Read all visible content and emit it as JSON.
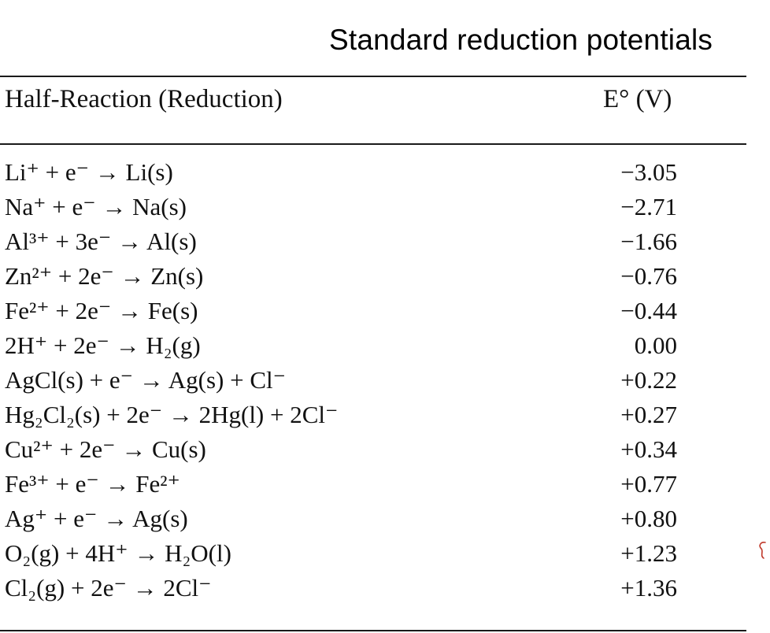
{
  "page": {
    "title": "Standard reduction potentials"
  },
  "table": {
    "headers": {
      "reaction": "Half-Reaction (Reduction)",
      "potential": "E° (V)"
    },
    "rows": [
      {
        "reaction": "Li⁺ + e⁻ → Li(s)",
        "potential": "−3.05"
      },
      {
        "reaction": "Na⁺ + e⁻ → Na(s)",
        "potential": "−2.71"
      },
      {
        "reaction": "Al³⁺ + 3e⁻ → Al(s)",
        "potential": "−1.66"
      },
      {
        "reaction": "Zn²⁺ + 2e⁻ → Zn(s)",
        "potential": "−0.76"
      },
      {
        "reaction": "Fe²⁺ + 2e⁻ → Fe(s)",
        "potential": "−0.44"
      },
      {
        "reaction": "2H⁺ + 2e⁻ → H₂(g)",
        "potential": "0.00"
      },
      {
        "reaction": "AgCl(s) + e⁻ → Ag(s) + Cl⁻",
        "potential": "+0.22"
      },
      {
        "reaction": "Hg₂Cl₂(s) + 2e⁻ → 2Hg(l) + 2Cl⁻",
        "potential": "+0.27"
      },
      {
        "reaction": "Cu²⁺ + 2e⁻ → Cu(s)",
        "potential": "+0.34"
      },
      {
        "reaction": "Fe³⁺ + e⁻ → Fe²⁺",
        "potential": "+0.77"
      },
      {
        "reaction": "Ag⁺ + e⁻ → Ag(s)",
        "potential": "+0.80"
      },
      {
        "reaction": "O₂(g) + 4H⁺ → H₂O(l)",
        "potential": "+1.23"
      },
      {
        "reaction": "Cl₂(g) + 2e⁻ → 2Cl⁻",
        "potential": "+1.36"
      }
    ]
  },
  "colors": {
    "text": "#111111",
    "rule": "#1a1a1a",
    "annotation_mark": "#c0392b"
  }
}
